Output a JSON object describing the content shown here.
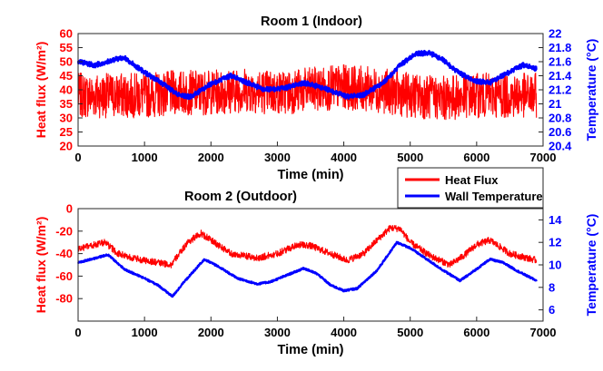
{
  "chart_data": [
    {
      "type": "line",
      "title": "Room 1 (Indoor)",
      "xlabel": "Time (min)",
      "ylabel_left": "Heat flux (W/m²)",
      "ylabel_right": "Temperature (°C)",
      "xlim": [
        0,
        7000
      ],
      "ylim_left": [
        20,
        60
      ],
      "ylim_right": [
        20.4,
        22
      ],
      "xticks": [
        0,
        1000,
        2000,
        3000,
        4000,
        5000,
        6000,
        7000
      ],
      "yticks_left": [
        20,
        25,
        30,
        35,
        40,
        45,
        50,
        55,
        60
      ],
      "yticks_right": [
        20.4,
        20.6,
        20.8,
        21,
        21.2,
        21.4,
        21.6,
        21.8,
        22
      ],
      "grid": false,
      "series": [
        {
          "name": "Heat Flux",
          "axis": "left",
          "color": "#ff0000",
          "noise_amplitude": 8,
          "x": [
            0,
            500,
            1000,
            1500,
            2000,
            2500,
            3000,
            3500,
            4000,
            4500,
            5000,
            5500,
            6000,
            6500,
            6900
          ],
          "values": [
            38,
            38,
            38,
            39,
            39,
            40,
            39,
            40,
            41,
            40,
            38,
            37,
            38,
            38,
            38
          ]
        },
        {
          "name": "Wall Temperature",
          "axis": "right",
          "color": "#0000ff",
          "noise_amplitude": 0.035,
          "x": [
            0,
            250,
            500,
            700,
            850,
            1000,
            1250,
            1500,
            1700,
            2000,
            2300,
            2500,
            2800,
            3100,
            3400,
            3700,
            4050,
            4300,
            4600,
            4850,
            5100,
            5300,
            5500,
            5700,
            5950,
            6200,
            6450,
            6700,
            6900
          ],
          "values": [
            21.6,
            21.55,
            21.62,
            21.66,
            21.55,
            21.45,
            21.3,
            21.13,
            21.1,
            21.28,
            21.4,
            21.32,
            21.2,
            21.22,
            21.3,
            21.22,
            21.1,
            21.13,
            21.3,
            21.55,
            21.72,
            21.72,
            21.62,
            21.46,
            21.33,
            21.3,
            21.43,
            21.55,
            21.5
          ]
        }
      ]
    },
    {
      "type": "line",
      "title": "Room 2 (Outdoor)",
      "xlabel": "Time (min)",
      "ylabel_left": "Heat flux (W/m²)",
      "ylabel_right": "Temperature (°C)",
      "xlim": [
        0,
        7000
      ],
      "ylim_left": [
        -100,
        0
      ],
      "ylim_right": [
        5,
        15
      ],
      "xticks": [
        0,
        1000,
        2000,
        3000,
        4000,
        5000,
        6000,
        7000
      ],
      "yticks_left": [
        -80,
        -60,
        -40,
        -20,
        0
      ],
      "yticks_right": [
        6,
        8,
        10,
        12,
        14
      ],
      "grid": false,
      "series": [
        {
          "name": "Heat Flux",
          "axis": "left",
          "color": "#ff0000",
          "noise_amplitude": 3,
          "x": [
            0,
            200,
            400,
            600,
            900,
            1200,
            1400,
            1650,
            1850,
            2000,
            2300,
            2700,
            3000,
            3300,
            3500,
            3800,
            4050,
            4300,
            4500,
            4700,
            4850,
            5000,
            5300,
            5600,
            5800,
            6000,
            6200,
            6500,
            6900
          ],
          "values": [
            -36,
            -33,
            -30,
            -40,
            -45,
            -48,
            -50,
            -30,
            -22,
            -28,
            -40,
            -44,
            -40,
            -32,
            -33,
            -40,
            -46,
            -40,
            -28,
            -17,
            -18,
            -30,
            -42,
            -50,
            -42,
            -32,
            -28,
            -40,
            -46
          ]
        },
        {
          "name": "Wall Temperature",
          "axis": "right",
          "color": "#0000ff",
          "noise_amplitude": 0.08,
          "x": [
            0,
            450,
            700,
            1000,
            1200,
            1420,
            1600,
            1900,
            2100,
            2400,
            2700,
            2900,
            3400,
            3600,
            3800,
            4000,
            4200,
            4500,
            4800,
            5000,
            5300,
            5500,
            5750,
            5900,
            6200,
            6400,
            6600,
            6900
          ],
          "values": [
            10.2,
            10.9,
            9.6,
            8.8,
            8.2,
            7.2,
            8.5,
            10.5,
            9.9,
            8.8,
            8.3,
            8.5,
            9.7,
            9.2,
            8.2,
            7.7,
            7.9,
            9.5,
            12.0,
            11.5,
            10.3,
            9.5,
            8.6,
            9.2,
            10.5,
            10.2,
            9.5,
            8.6
          ]
        }
      ]
    }
  ],
  "legend": {
    "entries": [
      {
        "label": "Heat Flux",
        "color": "#ff0000"
      },
      {
        "label": "Wall Temperature",
        "color": "#0000ff"
      }
    ],
    "placement": "between-panels-right"
  },
  "colors": {
    "left_axis": "#ff0000",
    "right_axis": "#0000ff",
    "axis": "#262626"
  }
}
